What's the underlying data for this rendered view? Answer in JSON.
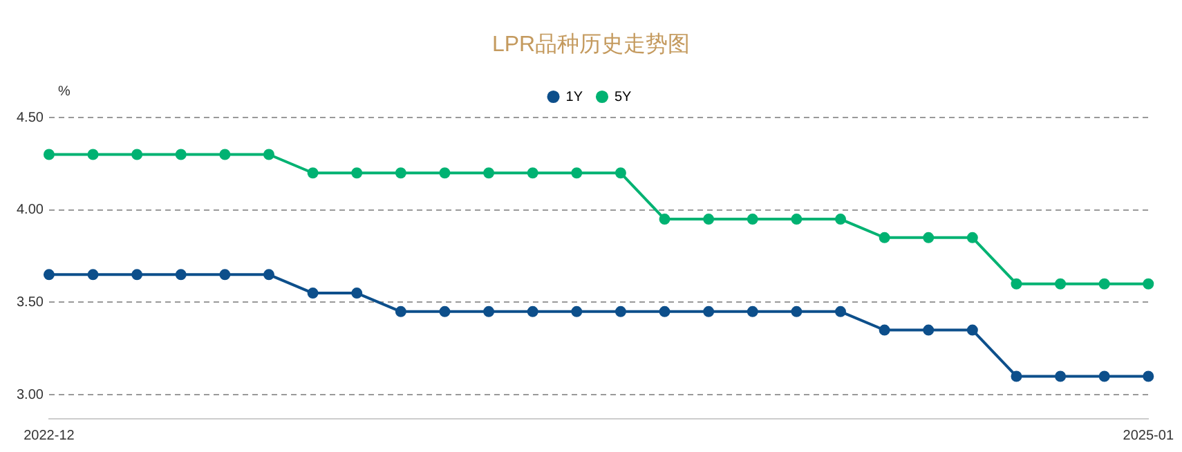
{
  "chart_data": {
    "type": "line",
    "title": "LPR品种历史走势图",
    "ylabel": "%",
    "categories": [
      "2022-12",
      null,
      null,
      null,
      null,
      null,
      null,
      null,
      null,
      null,
      null,
      null,
      null,
      null,
      null,
      null,
      null,
      null,
      null,
      null,
      null,
      null,
      null,
      null,
      null,
      "2025-01"
    ],
    "series": [
      {
        "name": "1Y",
        "color": "#0d4f8b",
        "values": [
          3.65,
          3.65,
          3.65,
          3.65,
          3.65,
          3.65,
          3.55,
          3.55,
          3.45,
          3.45,
          3.45,
          3.45,
          3.45,
          3.45,
          3.45,
          3.45,
          3.45,
          3.45,
          3.45,
          3.35,
          3.35,
          3.35,
          3.1,
          3.1,
          3.1,
          3.1
        ]
      },
      {
        "name": "5Y",
        "color": "#00b272",
        "values": [
          4.3,
          4.3,
          4.3,
          4.3,
          4.3,
          4.3,
          4.2,
          4.2,
          4.2,
          4.2,
          4.2,
          4.2,
          4.2,
          4.2,
          3.95,
          3.95,
          3.95,
          3.95,
          3.95,
          3.85,
          3.85,
          3.85,
          3.6,
          3.6,
          3.6,
          3.6
        ]
      }
    ],
    "ylim": [
      2.87,
      4.5
    ],
    "yticks": [
      {
        "value": 3,
        "label": "3.00"
      },
      {
        "value": 3.5,
        "label": "3.50"
      },
      {
        "value": 4,
        "label": "4.00"
      },
      {
        "value": 4.5,
        "label": "4.50"
      }
    ],
    "grid": "y",
    "line_style": "solid",
    "legend": "top",
    "marker": "circle"
  }
}
